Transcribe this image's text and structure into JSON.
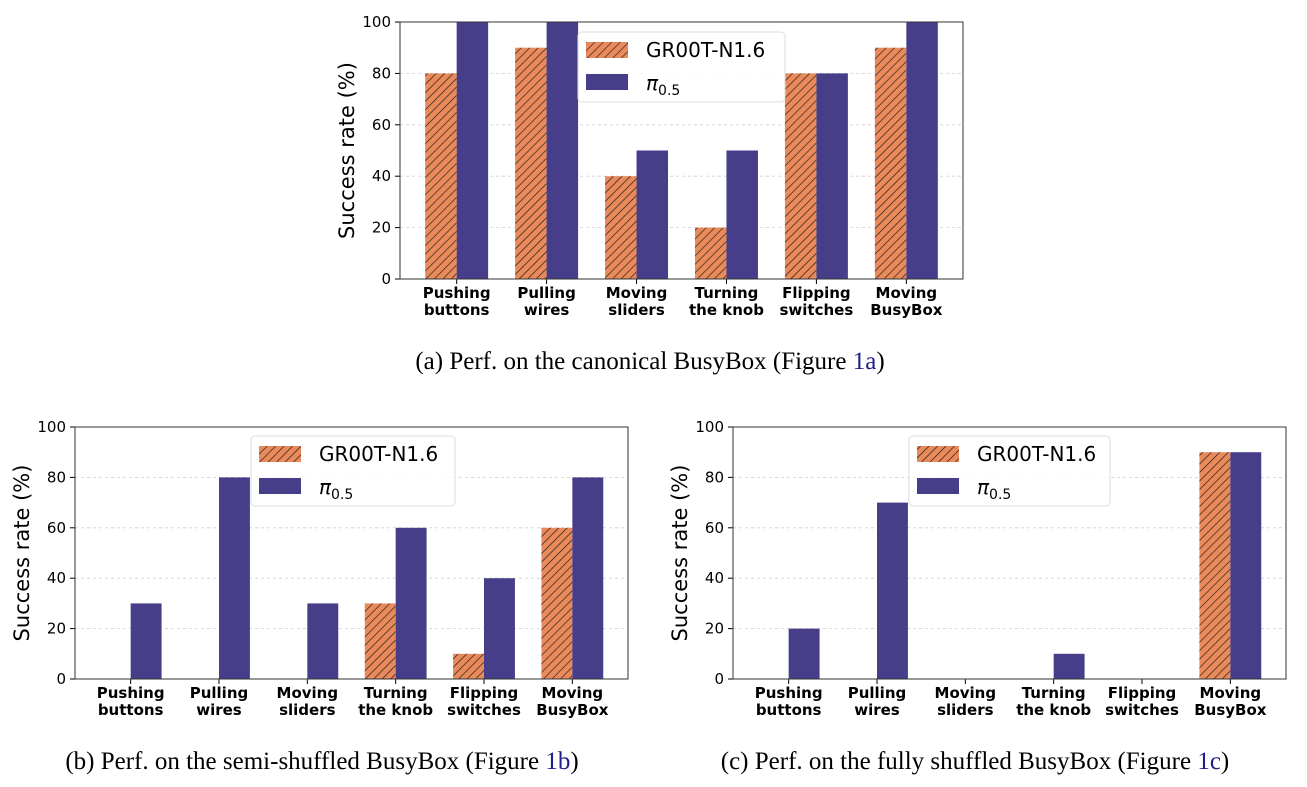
{
  "colors": {
    "groot": "#ea8a5a",
    "pi": "#463e88",
    "hatch": "#1a1a1a",
    "ref_link": "#1f1f8a"
  },
  "chart_data": [
    {
      "type": "bar",
      "caption": "(a) Perf. on the canonical BusyBox (Figure ",
      "caption_ref": "1a",
      "caption_end": ")",
      "ylabel": "Success rate (%)",
      "ylim": [
        0,
        100
      ],
      "yticks": [
        "0",
        "20",
        "40",
        "60",
        "80",
        "100"
      ],
      "grid": "horizontal dashed",
      "legend_position": "top-center",
      "categories": [
        [
          "Pushing",
          "buttons"
        ],
        [
          "Pulling",
          "wires"
        ],
        [
          "Moving",
          "sliders"
        ],
        [
          "Turning",
          "the knob"
        ],
        [
          "Flipping",
          "switches"
        ],
        [
          "Moving",
          "BusyBox"
        ]
      ],
      "series": [
        {
          "name": "GR00T-N1.6",
          "values": [
            80,
            90,
            40,
            20,
            80,
            90
          ],
          "style": "hatched"
        },
        {
          "name": "π",
          "name_sub": "0.5",
          "values": [
            100,
            100,
            50,
            50,
            80,
            100
          ],
          "style": "solid"
        }
      ]
    },
    {
      "type": "bar",
      "caption": "(b) Perf. on the semi-shuffled BusyBox (Figure ",
      "caption_ref": "1b",
      "caption_end": ")",
      "ylabel": "Success rate (%)",
      "ylim": [
        0,
        100
      ],
      "yticks": [
        "0",
        "20",
        "40",
        "60",
        "80",
        "100"
      ],
      "grid": "horizontal dashed",
      "legend_position": "top-center",
      "categories": [
        [
          "Pushing",
          "buttons"
        ],
        [
          "Pulling",
          "wires"
        ],
        [
          "Moving",
          "sliders"
        ],
        [
          "Turning",
          "the knob"
        ],
        [
          "Flipping",
          "switches"
        ],
        [
          "Moving",
          "BusyBox"
        ]
      ],
      "series": [
        {
          "name": "GR00T-N1.6",
          "values": [
            0,
            0,
            0,
            30,
            10,
            60
          ],
          "style": "hatched"
        },
        {
          "name": "π",
          "name_sub": "0.5",
          "values": [
            30,
            80,
            30,
            60,
            40,
            80
          ],
          "style": "solid"
        }
      ]
    },
    {
      "type": "bar",
      "caption": "(c) Perf. on the fully shuffled BusyBox (Figure ",
      "caption_ref": "1c",
      "caption_end": ")",
      "ylabel": "Success rate (%)",
      "ylim": [
        0,
        100
      ],
      "yticks": [
        "0",
        "20",
        "40",
        "60",
        "80",
        "100"
      ],
      "grid": "horizontal dashed",
      "legend_position": "top-center",
      "categories": [
        [
          "Pushing",
          "buttons"
        ],
        [
          "Pulling",
          "wires"
        ],
        [
          "Moving",
          "sliders"
        ],
        [
          "Turning",
          "the knob"
        ],
        [
          "Flipping",
          "switches"
        ],
        [
          "Moving",
          "BusyBox"
        ]
      ],
      "series": [
        {
          "name": "GR00T-N1.6",
          "values": [
            0,
            0,
            0,
            0,
            0,
            90
          ],
          "style": "hatched"
        },
        {
          "name": "π",
          "name_sub": "0.5",
          "values": [
            20,
            70,
            0,
            10,
            0,
            90
          ],
          "style": "solid"
        }
      ]
    }
  ]
}
